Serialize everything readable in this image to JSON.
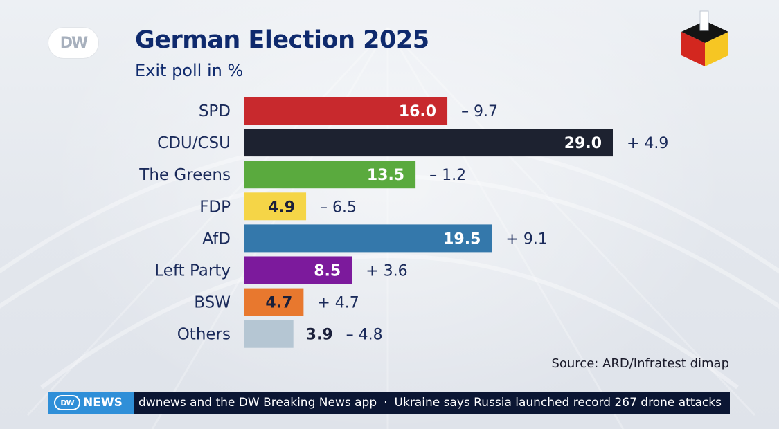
{
  "header": {
    "logo_text": "DW",
    "title": "German Election 2025",
    "subtitle": "Exit poll in %"
  },
  "chart_data": {
    "type": "bar",
    "orientation": "horizontal",
    "title": "German Election 2025",
    "subtitle": "Exit poll in %",
    "xlabel": "",
    "ylabel": "",
    "xlim": [
      0,
      29
    ],
    "categories": [
      "SPD",
      "CDU/CSU",
      "The Greens",
      "FDP",
      "AfD",
      "Left Party",
      "BSW",
      "Others"
    ],
    "values": [
      16.0,
      29.0,
      13.5,
      4.9,
      19.5,
      8.5,
      4.7,
      3.9
    ],
    "value_labels": [
      "16.0",
      "29.0",
      "13.5",
      "4.9",
      "19.5",
      "8.5",
      "4.7",
      "3.9"
    ],
    "changes": [
      "– 9.7",
      "+ 4.9",
      "– 1.2",
      "– 6.5",
      "+ 9.1",
      "+ 3.6",
      "+ 4.7",
      "– 4.8"
    ],
    "colors": [
      "#c8292d",
      "#1d2230",
      "#5aaa3e",
      "#f5d547",
      "#3478ab",
      "#7c1a9c",
      "#e8782e",
      "#b5c6d3"
    ],
    "value_label_colors": [
      "#ffffff",
      "#ffffff",
      "#ffffff",
      "#1a1f3a",
      "#ffffff",
      "#ffffff",
      "#1a1f3a",
      "#1a1f3a"
    ],
    "value_label_placement": [
      "inside",
      "inside",
      "inside",
      "inside",
      "inside",
      "inside",
      "inside",
      "outside"
    ]
  },
  "source": "Source: ARD/Infratest dimap",
  "ticker": {
    "brand_logo": "DW",
    "brand_label": "NEWS",
    "items": [
      "dwnews and the DW Breaking News app",
      "Ukraine says Russia launched record 267 drone attacks"
    ],
    "separator": "·"
  },
  "colors": {
    "title": "#0f2a6d",
    "ticker_bg": "#0b1633",
    "ticker_brand_bg": "#2f8fd8"
  }
}
